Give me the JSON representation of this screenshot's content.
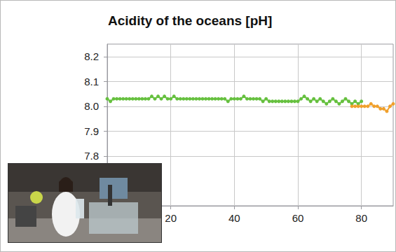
{
  "chart_data": {
    "type": "line",
    "title": "Acidity of the oceans [pH]",
    "xlim": [
      0,
      90
    ],
    "xticks": [
      20,
      40,
      60,
      80
    ],
    "ylim": [
      7.6,
      8.25
    ],
    "yticks": [
      7.8,
      7.9,
      {
        "value": 8,
        "label": "8.0"
      },
      8.1,
      8.2
    ],
    "grid": true,
    "series": [
      {
        "color": "#66c03f",
        "marker": "circle",
        "x": [
          0,
          1,
          2,
          3,
          4,
          5,
          6,
          7,
          8,
          9,
          10,
          11,
          12,
          13,
          14,
          15,
          16,
          17,
          18,
          19,
          20,
          21,
          22,
          23,
          24,
          25,
          26,
          27,
          28,
          29,
          30,
          31,
          32,
          33,
          34,
          35,
          36,
          37,
          38,
          39,
          40,
          41,
          42,
          43,
          44,
          45,
          46,
          47,
          48,
          49,
          50,
          51,
          52,
          53,
          54,
          55,
          56,
          57,
          58,
          59,
          60,
          61,
          62,
          63,
          64,
          65,
          66,
          67,
          68,
          69,
          70,
          71,
          72,
          73,
          74,
          75,
          76,
          77,
          78,
          79,
          80
        ],
        "values": [
          8.03,
          8.02,
          8.03,
          8.03,
          8.03,
          8.03,
          8.03,
          8.03,
          8.03,
          8.03,
          8.03,
          8.03,
          8.03,
          8.03,
          8.04,
          8.03,
          8.04,
          8.03,
          8.04,
          8.03,
          8.03,
          8.04,
          8.03,
          8.03,
          8.03,
          8.03,
          8.03,
          8.03,
          8.03,
          8.03,
          8.03,
          8.03,
          8.03,
          8.03,
          8.03,
          8.03,
          8.03,
          8.03,
          8.02,
          8.03,
          8.03,
          8.03,
          8.03,
          8.04,
          8.03,
          8.03,
          8.03,
          8.03,
          8.03,
          8.02,
          8.03,
          8.02,
          8.02,
          8.02,
          8.02,
          8.02,
          8.02,
          8.02,
          8.02,
          8.02,
          8.02,
          8.03,
          8.04,
          8.03,
          8.02,
          8.03,
          8.02,
          8.03,
          8.02,
          8.01,
          8.02,
          8.03,
          8.02,
          8.01,
          8.02,
          8.03,
          8.02,
          8.01,
          8.02,
          8.01,
          8.02
        ]
      },
      {
        "color": "#f0a02c",
        "marker": "circle",
        "x": [
          77,
          78,
          79,
          80,
          81,
          82,
          83,
          84,
          85,
          86,
          87,
          88,
          89,
          90
        ],
        "values": [
          8.0,
          8.0,
          8.0,
          8.0,
          8.0,
          8.0,
          8.01,
          8.0,
          8.0,
          7.99,
          7.99,
          7.98,
          8.0,
          8.01
        ]
      }
    ]
  }
}
